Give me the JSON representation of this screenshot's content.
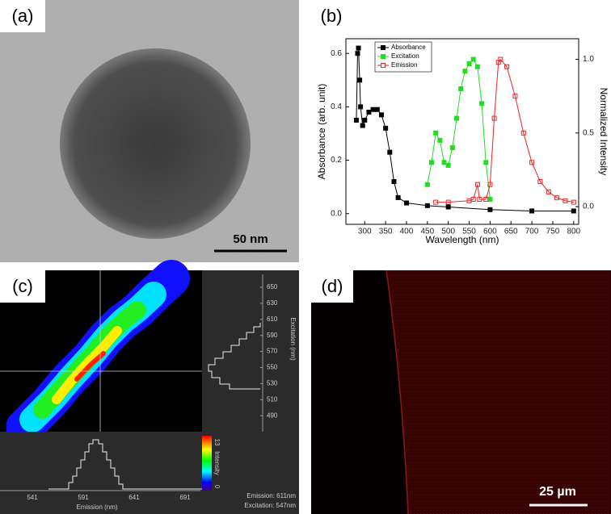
{
  "panels": [
    {
      "label": "(a)",
      "scale_bar": "50 nm"
    },
    {
      "label": "(b)"
    },
    {
      "label": "(c)",
      "x_label": "Emission (nm)",
      "y_label": "Excitation (nm)",
      "xticks": [
        541,
        591,
        641,
        691
      ],
      "yticks": [
        650,
        630,
        610,
        590,
        570,
        550,
        530,
        510,
        490
      ],
      "colorbar_label": "Intensity",
      "colorbar_max": 13,
      "colorbar_min": 0,
      "readout": [
        "Emission: 611nm",
        "Excitation: 547nm"
      ]
    },
    {
      "label": "(d)",
      "scale_bar": "25 µm"
    }
  ],
  "chart_data": {
    "type": "line",
    "x_label": "Wavelength (nm)",
    "y_label": "Absorbance (arb. unit)",
    "y2_label": "Normalized Intensity",
    "xlim": [
      255,
      812
    ],
    "xticks": [
      300,
      350,
      400,
      450,
      500,
      550,
      600,
      650,
      700,
      750,
      800
    ],
    "ylim": [
      -0.04,
      0.655
    ],
    "yticks": [
      {
        "value": 0,
        "label": "0.0"
      },
      0.2,
      0.4,
      0.6
    ],
    "y2lim": [
      -0.12,
      1.14
    ],
    "y2ticks": [
      {
        "value": 0,
        "label": "0.0"
      },
      0.5,
      {
        "value": 1,
        "label": "1.0"
      }
    ],
    "legend": "upper left",
    "series": [
      {
        "name": "Absorbance",
        "color": "#000000",
        "filled": true,
        "x": [
          280,
          283,
          285,
          288,
          290,
          295,
          300,
          310,
          320,
          330,
          340,
          350,
          360,
          370,
          380,
          400,
          450,
          500,
          600,
          700,
          800
        ],
        "values": [
          0.35,
          0.6,
          0.62,
          0.5,
          0.4,
          0.33,
          0.35,
          0.38,
          0.39,
          0.39,
          0.37,
          0.32,
          0.23,
          0.12,
          0.06,
          0.04,
          0.03,
          0.025,
          0.015,
          0.01,
          0.01
        ]
      },
      {
        "name": "Excitation",
        "color": "#22dd22",
        "filled": true,
        "axis": "y2",
        "x": [
          450,
          460,
          470,
          480,
          490,
          500,
          510,
          520,
          530,
          540,
          550,
          560,
          570,
          580,
          590,
          600
        ],
        "values": [
          0.15,
          0.3,
          0.5,
          0.45,
          0.3,
          0.28,
          0.4,
          0.6,
          0.8,
          0.92,
          0.97,
          1.0,
          0.95,
          0.7,
          0.3,
          0.05
        ]
      },
      {
        "name": "Emission",
        "color": "#ee2222",
        "filled": false,
        "axis": "y2",
        "x": [
          470,
          500,
          550,
          560,
          570,
          575,
          590,
          600,
          610,
          620,
          625,
          640,
          660,
          680,
          700,
          720,
          740,
          760,
          780,
          800
        ],
        "values": [
          0.03,
          0.03,
          0.04,
          0.05,
          0.15,
          0.05,
          0.05,
          0.15,
          0.6,
          0.98,
          1.0,
          0.95,
          0.75,
          0.5,
          0.3,
          0.17,
          0.1,
          0.06,
          0.04,
          0.03
        ]
      }
    ]
  }
}
